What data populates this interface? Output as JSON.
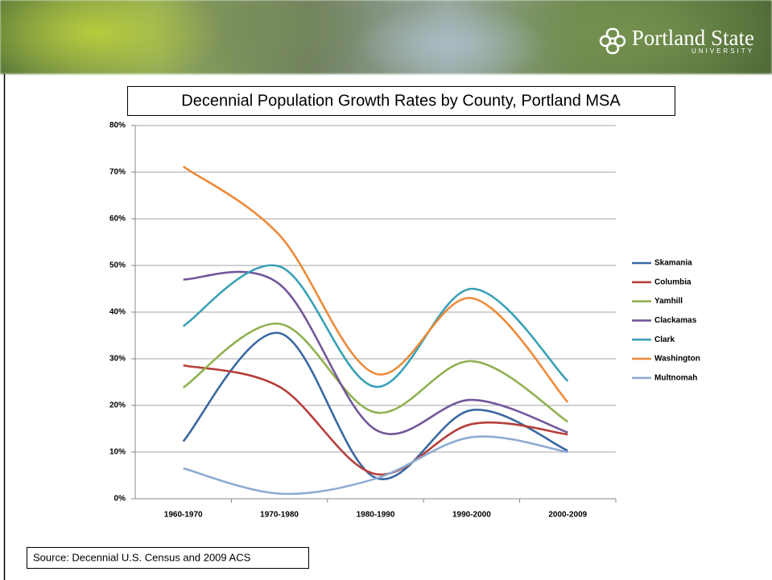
{
  "header": {
    "logo_title": "Portland State",
    "logo_subtitle": "UNIVERSITY"
  },
  "chart_data": {
    "type": "line",
    "smooth": true,
    "title": "Decennial Population Growth Rates by County, Portland MSA",
    "source": "Source: Decennial U.S. Census and 2009 ACS",
    "categories": [
      "1960-1970",
      "1970-1980",
      "1980-1990",
      "1990-2000",
      "2000-2009"
    ],
    "series": [
      {
        "name": "Skamania",
        "color": "#3a68a2",
        "values": [
          12.3,
          35.5,
          4.5,
          19,
          10.3
        ]
      },
      {
        "name": "Columbia",
        "color": "#b53f3a",
        "values": [
          28.6,
          24,
          5.3,
          16,
          13.8
        ]
      },
      {
        "name": "Yamhill",
        "color": "#8fb04f",
        "values": [
          23.8,
          37.5,
          18.5,
          29.5,
          16.5
        ]
      },
      {
        "name": "Clackamas",
        "color": "#72579a",
        "values": [
          47,
          46,
          14.8,
          21.2,
          14.2
        ]
      },
      {
        "name": "Clark",
        "color": "#3aa0b8",
        "values": [
          37,
          49.8,
          24,
          45,
          25.2
        ]
      },
      {
        "name": "Washington",
        "color": "#ec8a3a",
        "values": [
          71.2,
          56.5,
          26.8,
          43,
          20.7
        ]
      },
      {
        "name": "Multnomah",
        "color": "#8eabd3",
        "values": [
          6.5,
          1.1,
          4.3,
          13.2,
          10
        ]
      }
    ],
    "ylim": [
      0,
      80
    ],
    "yticks": [
      {
        "value": 0,
        "label": "0%"
      },
      {
        "value": 10,
        "label": "10%"
      },
      {
        "value": 20,
        "label": "20%"
      },
      {
        "value": 30,
        "label": "30%"
      },
      {
        "value": 40,
        "label": "40%"
      },
      {
        "value": 50,
        "label": "50%"
      },
      {
        "value": 60,
        "label": "60%"
      },
      {
        "value": 70,
        "label": "70%"
      },
      {
        "value": 80,
        "label": "80%"
      }
    ],
    "grid": true,
    "legend": "right"
  }
}
